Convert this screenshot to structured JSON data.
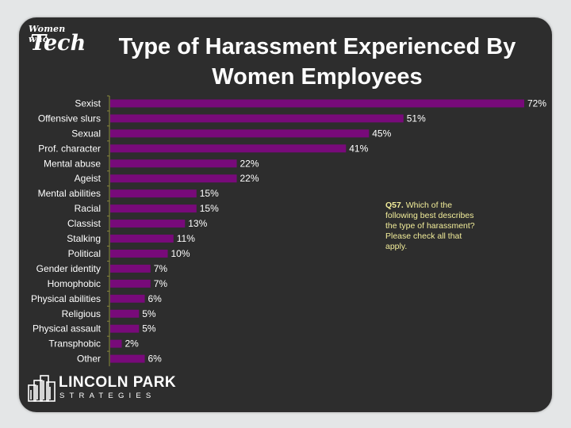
{
  "header": {
    "logo_small": "Women who",
    "logo_big": "Tech",
    "title_line1": "Type of Harassment Experienced By",
    "title_line2": "Women Employees"
  },
  "note": {
    "question_id": "Q57.",
    "question_text": "Which of the following best describes the type of harassment? Please check all that apply."
  },
  "footer": {
    "brand_name": "LINCOLN PARK",
    "brand_sub": "STRATEGIES"
  },
  "colors": {
    "bar": "#780a7a",
    "background": "#2d2d2d",
    "axis": "#8a8a3a",
    "note_text": "#f2ed9a"
  },
  "chart_data": {
    "type": "bar",
    "orientation": "horizontal",
    "categories": [
      "Sexist",
      "Offensive slurs",
      "Sexual",
      "Prof. character",
      "Mental abuse",
      "Ageist",
      "Mental abilities",
      "Racial",
      "Classist",
      "Stalking",
      "Political",
      "Gender identity",
      "Homophobic",
      "Physical abilities",
      "Religious",
      "Physical assault",
      "Transphobic",
      "Other"
    ],
    "values": [
      72,
      51,
      45,
      41,
      22,
      22,
      15,
      15,
      13,
      11,
      10,
      7,
      7,
      6,
      5,
      5,
      2,
      6
    ],
    "value_labels": [
      "72%",
      "51%",
      "45%",
      "41%",
      "22%",
      "22%",
      "15%",
      "15%",
      "13%",
      "11%",
      "10%",
      "7%",
      "7%",
      "6%",
      "5%",
      "5%",
      "2%",
      "6%"
    ],
    "xlim": [
      0,
      72
    ],
    "grid": false,
    "legend": "none"
  }
}
